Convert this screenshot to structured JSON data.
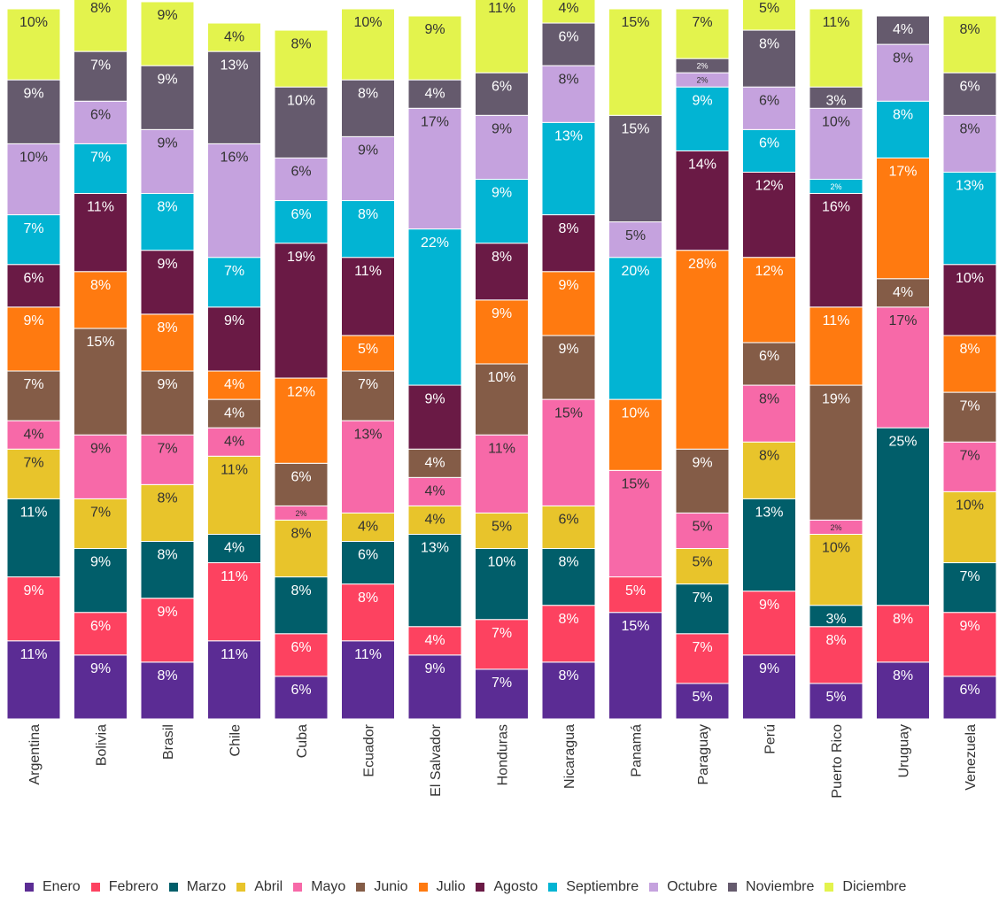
{
  "chart_data": {
    "type": "bar",
    "stacked": true,
    "categories": [
      "Argentina",
      "Bolivia",
      "Brasil",
      "Chile",
      "Cuba",
      "Ecuador",
      "El Salvador",
      "Honduras",
      "Nicaragua",
      "Panamá",
      "Paraguay",
      "Perú",
      "Puerto Rico",
      "Uruguay",
      "Venezuela"
    ],
    "ylim": [
      0,
      100
    ],
    "series": [
      {
        "name": "Enero",
        "color": "#5b2c94",
        "values": [
          11,
          9,
          8,
          11,
          6,
          11,
          9,
          7,
          8,
          15,
          5,
          9,
          5,
          8,
          6
        ],
        "value_labels": [
          "11%",
          "9%",
          "8%",
          "11%",
          "6%",
          "11%",
          "9%",
          "7%",
          "8%",
          "15%",
          "5%",
          "9%",
          "5%",
          "8%",
          "6%"
        ]
      },
      {
        "name": "Febrero",
        "color": "#fd4260",
        "values": [
          9,
          6,
          9,
          11,
          6,
          8,
          4,
          7,
          8,
          5,
          7,
          9,
          8,
          8,
          9
        ],
        "value_labels": [
          "9%",
          "6%",
          "9%",
          "11%",
          "6%",
          "8%",
          "4%",
          "7%",
          "8%",
          "5%",
          "7%",
          "9%",
          "8%",
          "8%",
          "9%"
        ]
      },
      {
        "name": "Marzo",
        "color": "#015e6a",
        "values": [
          11,
          9,
          8,
          4,
          8,
          6,
          13,
          10,
          8,
          0,
          7,
          13,
          3,
          25,
          7
        ],
        "value_labels": [
          "11%",
          "9%",
          "8%",
          "4%",
          "8%",
          "6%",
          "13%",
          "10%",
          "8%",
          null,
          "7%",
          "13%",
          "3%",
          "25%",
          "7%"
        ]
      },
      {
        "name": "Abril",
        "color": "#e8c42b",
        "values": [
          7,
          7,
          8,
          11,
          8,
          4,
          4,
          5,
          6,
          0,
          5,
          8,
          10,
          0,
          10
        ],
        "value_labels": [
          "7%",
          "7%",
          "8%",
          "11%",
          "8%",
          "4%",
          "4%",
          "5%",
          "6%",
          null,
          "5%",
          "8%",
          "10%",
          null,
          "10%"
        ]
      },
      {
        "name": "Mayo",
        "color": "#f769a8",
        "values": [
          4,
          9,
          7,
          4,
          2,
          13,
          4,
          11,
          15,
          15,
          5,
          8,
          2,
          17,
          7
        ],
        "value_labels": [
          "4%",
          "9%",
          "7%",
          "4%",
          "2%",
          "13%",
          "4%",
          "11%",
          "15%",
          "15%",
          "5%",
          "8%",
          "2%",
          "17%",
          "7%"
        ]
      },
      {
        "name": "Junio",
        "color": "#845c47",
        "values": [
          7,
          15,
          9,
          4,
          6,
          7,
          4,
          10,
          9,
          0,
          9,
          6,
          19,
          4,
          7
        ],
        "value_labels": [
          "7%",
          "15%",
          "9%",
          "4%",
          "6%",
          "7%",
          "4%",
          "10%",
          "9%",
          null,
          "9%",
          "6%",
          "19%",
          "4%",
          "7%"
        ]
      },
      {
        "name": "Julio",
        "color": "#ff7a10",
        "values": [
          9,
          8,
          8,
          4,
          12,
          5,
          0,
          9,
          9,
          10,
          28,
          12,
          11,
          17,
          8
        ],
        "value_labels": [
          "9%",
          "8%",
          "8%",
          "4%",
          "12%",
          "5%",
          null,
          "9%",
          "9%",
          "10%",
          "28%",
          "12%",
          "11%",
          "17%",
          "8%"
        ]
      },
      {
        "name": "Agosto",
        "color": "#6a1a45",
        "values": [
          6,
          11,
          9,
          9,
          19,
          11,
          9,
          8,
          8,
          0,
          14,
          12,
          16,
          0,
          10
        ],
        "value_labels": [
          "6%",
          "11%",
          "9%",
          "9%",
          "19%",
          "11%",
          "9%",
          "8%",
          "8%",
          null,
          "14%",
          "12%",
          "16%",
          null,
          "10%"
        ]
      },
      {
        "name": "Septiembre",
        "color": "#02b4d3",
        "values": [
          7,
          7,
          8,
          7,
          6,
          8,
          22,
          9,
          13,
          20,
          9,
          6,
          2,
          8,
          13
        ],
        "value_labels": [
          "7%",
          "7%",
          "8%",
          "7%",
          "6%",
          "8%",
          "22%",
          "9%",
          "13%",
          "20%",
          "9%",
          "6%",
          "2%",
          "8%",
          "13%"
        ]
      },
      {
        "name": "Octubre",
        "color": "#c5a2de",
        "values": [
          10,
          6,
          9,
          16,
          6,
          9,
          17,
          9,
          8,
          5,
          2,
          6,
          10,
          8,
          8
        ],
        "value_labels": [
          "10%",
          "6%",
          "9%",
          "16%",
          "6%",
          "9%",
          "17%",
          "9%",
          "8%",
          "5%",
          "2%",
          "6%",
          "10%",
          "8%",
          "8%"
        ]
      },
      {
        "name": "Noviembre",
        "color": "#655a6d",
        "values": [
          9,
          7,
          9,
          13,
          10,
          8,
          4,
          6,
          6,
          15,
          2,
          8,
          3,
          4,
          6
        ],
        "value_labels": [
          "9%",
          "7%",
          "9%",
          "13%",
          "10%",
          "8%",
          "4%",
          "6%",
          "6%",
          "15%",
          "2%",
          "8%",
          "3%",
          "4%",
          "6%"
        ]
      },
      {
        "name": "Diciembre",
        "color": "#e3f34d",
        "values": [
          10,
          8,
          9,
          4,
          8,
          10,
          9,
          11,
          4,
          15,
          7,
          5,
          11,
          0,
          8
        ],
        "value_labels": [
          "10%",
          "8%",
          "9%",
          "4%",
          "8%",
          "10%",
          "9%",
          "11%",
          "4%",
          "15%",
          "7%",
          "5%",
          "11%",
          null,
          "8%"
        ]
      }
    ]
  }
}
